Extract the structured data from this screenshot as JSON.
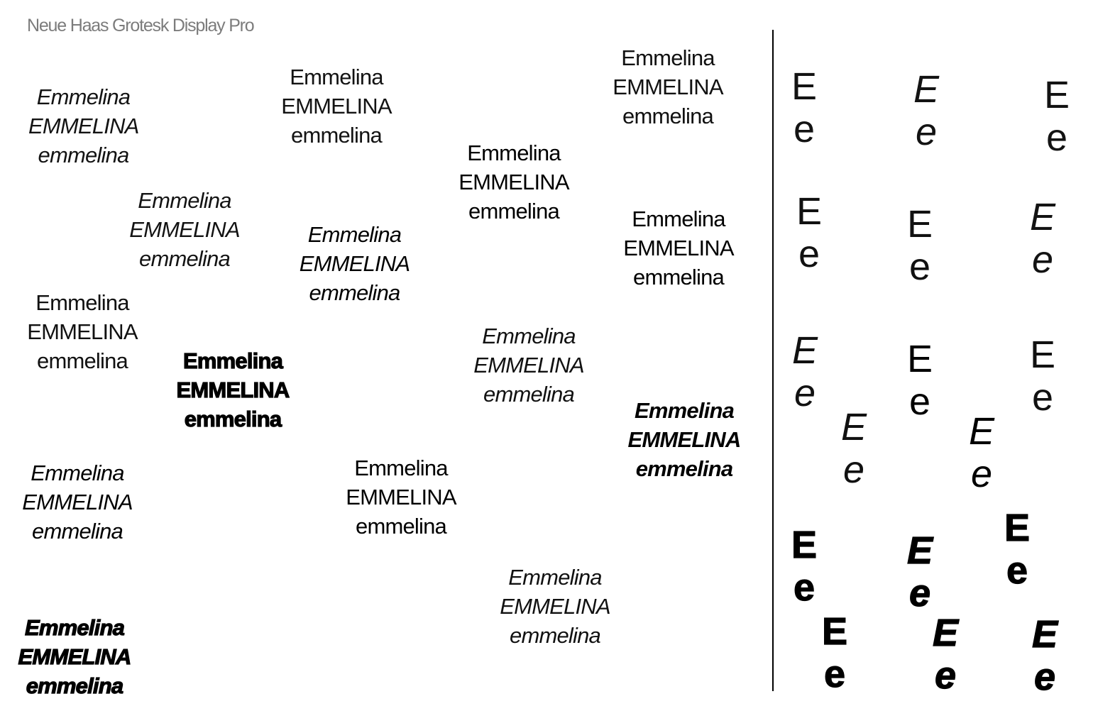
{
  "title": "Neue Haas Grotesk Display Pro",
  "specimen": {
    "line1": "Emmelina",
    "line2": "EMMELINA",
    "line3": "emmelina"
  },
  "glyphs": {
    "upper": "E",
    "lower": "e"
  }
}
